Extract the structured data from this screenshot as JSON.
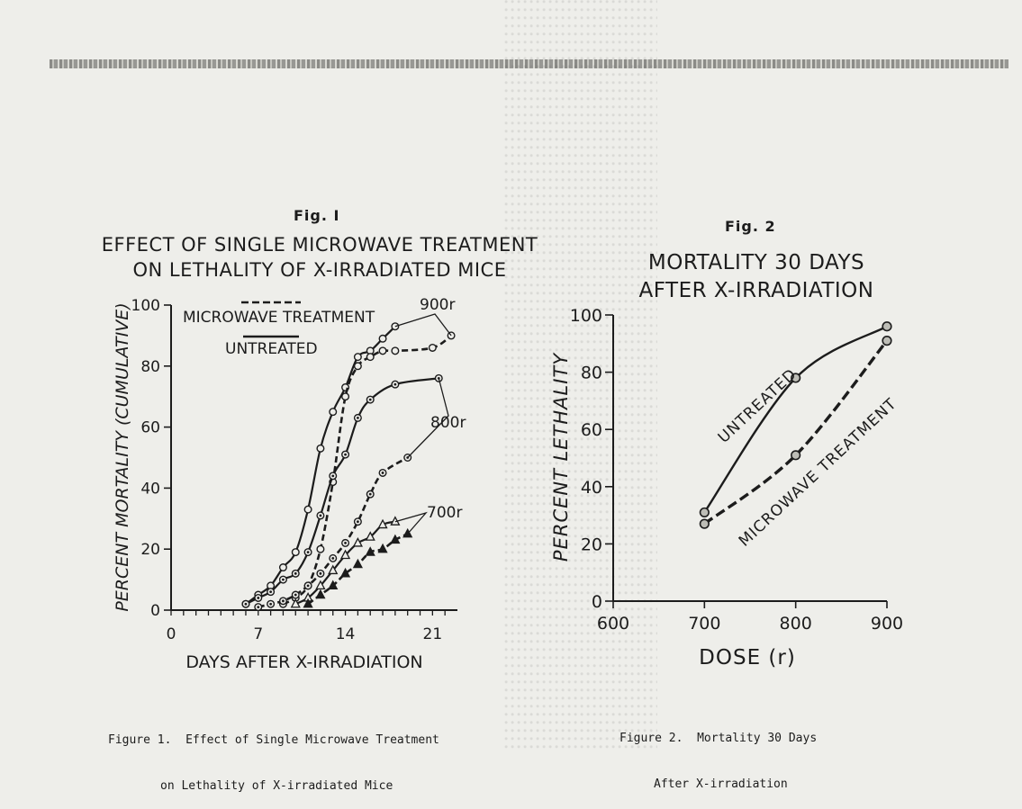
{
  "fig1": {
    "number": "Fig. I",
    "title_lines": [
      "EFFECT OF SINGLE MICROWAVE TREATMENT",
      "ON LETHALITY OF X-IRRADIATED MICE"
    ],
    "caption_lines": [
      "Figure 1.  Effect of Single Microwave Treatment",
      "on Lethality of X-irradiated Mice"
    ]
  },
  "fig2": {
    "number": "Fig. 2",
    "title_lines": [
      "MORTALITY 30 DAYS",
      "AFTER X-IRRADIATION"
    ],
    "caption_lines": [
      "Figure 2.  Mortality 30 Days",
      "After X-irradiation"
    ]
  },
  "chart_data": [
    {
      "type": "line",
      "title": "EFFECT OF SINGLE MICROWAVE TREATMENT ON LETHALITY OF X-IRRADIATED MICE",
      "xlabel": "DAYS AFTER X-IRRADIATION",
      "ylabel": "PERCENT MORTALITY (CUMULATIVE)",
      "xlim": [
        0,
        23
      ],
      "ylim": [
        0,
        100
      ],
      "xticks": [
        0,
        7,
        14,
        21
      ],
      "yticks": [
        0,
        20,
        40,
        60,
        80,
        100
      ],
      "legend": {
        "placement": "top-left",
        "entries": [
          "MICROWAVE TREATMENT",
          "UNTREATED"
        ]
      },
      "dose_labels": [
        "900r",
        "800r",
        "700r"
      ],
      "series": [
        {
          "group": "900r",
          "treatment": "UNTREATED",
          "marker": "circle",
          "x": [
            6,
            7,
            8,
            9,
            10,
            11,
            12,
            13,
            14,
            15,
            16,
            17,
            18
          ],
          "y": [
            2,
            5,
            8,
            14,
            19,
            33,
            53,
            65,
            73,
            83,
            85,
            89,
            93
          ]
        },
        {
          "group": "900r",
          "treatment": "MICROWAVE TREATMENT",
          "marker": "circle",
          "x": [
            9,
            10,
            11,
            12,
            13,
            14,
            15,
            16,
            17,
            18,
            21,
            22.5
          ],
          "y": [
            2,
            4,
            8,
            20,
            42,
            70,
            80,
            83,
            85,
            85,
            86,
            90
          ]
        },
        {
          "group": "800r",
          "treatment": "UNTREATED",
          "marker": "dot-circle",
          "x": [
            6,
            7,
            8,
            9,
            10,
            11,
            12,
            13,
            14,
            15,
            16,
            18,
            21.5
          ],
          "y": [
            2,
            4,
            6,
            10,
            12,
            19,
            31,
            44,
            51,
            63,
            69,
            74,
            76
          ]
        },
        {
          "group": "800r",
          "treatment": "MICROWAVE TREATMENT",
          "marker": "dot-circle",
          "x": [
            7,
            8,
            9,
            10,
            11,
            12,
            13,
            14,
            15,
            16,
            17,
            19
          ],
          "y": [
            1,
            2,
            3,
            5,
            8,
            12,
            17,
            22,
            29,
            38,
            45,
            50
          ]
        },
        {
          "group": "700r",
          "treatment": "UNTREATED",
          "marker": "triangle",
          "x": [
            10,
            11,
            12,
            13,
            14,
            15,
            16,
            17,
            18
          ],
          "y": [
            2,
            4,
            8,
            13,
            18,
            22,
            24,
            28,
            29
          ]
        },
        {
          "group": "700r",
          "treatment": "MICROWAVE TREATMENT",
          "marker": "triangle",
          "x": [
            11,
            12,
            13,
            14,
            15,
            16,
            17,
            18,
            19
          ],
          "y": [
            2,
            5,
            8,
            12,
            15,
            19,
            20,
            23,
            25
          ]
        }
      ]
    },
    {
      "type": "line",
      "title": "MORTALITY 30 DAYS AFTER X-IRRADIATION",
      "xlabel": "DOSE (r)",
      "ylabel": "PERCENT LETHALITY",
      "xlim": [
        600,
        900
      ],
      "ylim": [
        0,
        100
      ],
      "xticks": [
        600,
        700,
        800,
        900
      ],
      "yticks": [
        0,
        20,
        40,
        60,
        80,
        100
      ],
      "series": [
        {
          "name": "UNTREATED",
          "style": "solid",
          "x": [
            700,
            800,
            900
          ],
          "y": [
            31,
            78,
            96
          ]
        },
        {
          "name": "MICROWAVE TREATMENT",
          "style": "dashed",
          "x": [
            700,
            800,
            900
          ],
          "y": [
            27,
            51,
            91
          ]
        }
      ]
    }
  ]
}
